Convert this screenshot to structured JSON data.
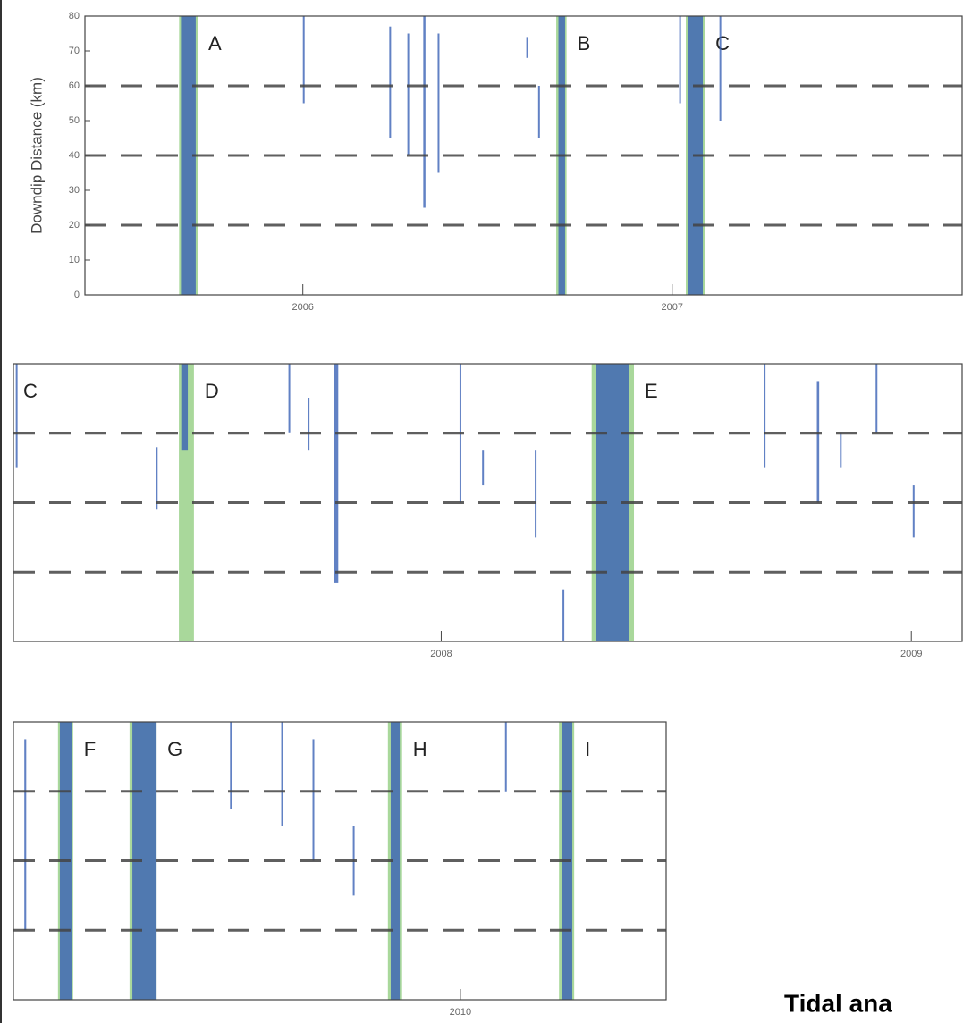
{
  "chart_data": [
    {
      "type": "tremor",
      "y_label": "Downdip Distance (km)",
      "xlim": [
        2005.41,
        2007.785
      ],
      "ylim": [
        0,
        80
      ],
      "yticks": [
        0,
        10,
        20,
        30,
        40,
        50,
        60,
        70,
        80
      ],
      "xticks": [
        2006,
        2007
      ],
      "hlines": [
        20,
        40,
        60
      ],
      "color": "#3a62b5",
      "band_color": "#a9d89b",
      "episodes": [
        {
          "label": "A",
          "start": 2005.665,
          "end": 2005.715
        },
        {
          "label": "B",
          "start": 2006.686,
          "end": 2006.714
        },
        {
          "label": "C",
          "start": 2007.037,
          "end": 2007.088
        }
      ],
      "tremor": [
        [
          2005.67,
          2005.71,
          0,
          80
        ],
        [
          2006.0,
          2006.003,
          55,
          80
        ],
        [
          2006.234,
          2006.237,
          45,
          77
        ],
        [
          2006.283,
          2006.286,
          40,
          75
        ],
        [
          2006.326,
          2006.332,
          25,
          80
        ],
        [
          2006.365,
          2006.368,
          35,
          75
        ],
        [
          2006.605,
          2006.607,
          68,
          74
        ],
        [
          2006.637,
          2006.639,
          45,
          60
        ],
        [
          2006.692,
          2006.71,
          0,
          80
        ],
        [
          2007.019,
          2007.021,
          55,
          80
        ],
        [
          2007.043,
          2007.083,
          0,
          80
        ],
        [
          2007.128,
          2007.13,
          50,
          80
        ]
      ]
    },
    {
      "type": "tremor",
      "xlim": [
        2007.09,
        2009.108
      ],
      "ylim": [
        0,
        80
      ],
      "xticks": [
        2008,
        2009
      ],
      "hlines": [
        20,
        40,
        60
      ],
      "color": "#3a62b5",
      "band_color": "#a9d89b",
      "episodes": [
        {
          "label": "C",
          "start": 2007.037,
          "end": 2007.088
        },
        {
          "label": "D",
          "start": 2007.442,
          "end": 2007.474
        },
        {
          "label": "E",
          "start": 2008.32,
          "end": 2008.41
        }
      ],
      "tremor": [
        [
          2007.095,
          2007.098,
          50,
          80
        ],
        [
          2007.393,
          2007.396,
          38,
          56
        ],
        [
          2007.447,
          2007.461,
          55,
          80
        ],
        [
          2007.675,
          2007.678,
          60,
          80
        ],
        [
          2007.716,
          2007.719,
          55,
          70
        ],
        [
          2007.772,
          2007.781,
          17,
          80
        ],
        [
          2008.039,
          2008.042,
          40,
          80
        ],
        [
          2008.087,
          2008.09,
          45,
          55
        ],
        [
          2008.199,
          2008.202,
          30,
          55
        ],
        [
          2008.258,
          2008.261,
          0,
          15
        ],
        [
          2008.33,
          2008.4,
          0,
          80
        ],
        [
          2008.686,
          2008.689,
          50,
          80
        ],
        [
          2008.799,
          2008.804,
          40,
          75
        ],
        [
          2008.848,
          2008.851,
          50,
          60
        ],
        [
          2008.924,
          2008.927,
          60,
          80
        ],
        [
          2009.003,
          2009.006,
          30,
          45
        ]
      ]
    },
    {
      "type": "tremor",
      "xlim": [
        2009.057,
        2010.434
      ],
      "ylim": [
        0,
        80
      ],
      "xticks": [
        2010
      ],
      "hlines": [
        20,
        40,
        60
      ],
      "color": "#3a62b5",
      "band_color": "#a9d89b",
      "episodes": [
        {
          "label": "F",
          "start": 2009.151,
          "end": 2009.183
        },
        {
          "label": "G",
          "start": 2009.302,
          "end": 2009.359
        },
        {
          "label": "H",
          "start": 2009.847,
          "end": 2009.877
        },
        {
          "label": "I",
          "start": 2010.208,
          "end": 2010.24
        }
      ],
      "tremor": [
        [
          2009.08,
          2009.084,
          20,
          75
        ],
        [
          2009.155,
          2009.18,
          0,
          80
        ],
        [
          2009.308,
          2009.359,
          0,
          80
        ],
        [
          2009.514,
          2009.517,
          55,
          80
        ],
        [
          2009.622,
          2009.625,
          50,
          80
        ],
        [
          2009.688,
          2009.691,
          40,
          75
        ],
        [
          2009.773,
          2009.776,
          30,
          50
        ],
        [
          2009.853,
          2009.872,
          0,
          80
        ],
        [
          2010.094,
          2010.097,
          60,
          80
        ],
        [
          2010.214,
          2010.236,
          0,
          80
        ]
      ]
    }
  ],
  "caption": "Tidal ana"
}
